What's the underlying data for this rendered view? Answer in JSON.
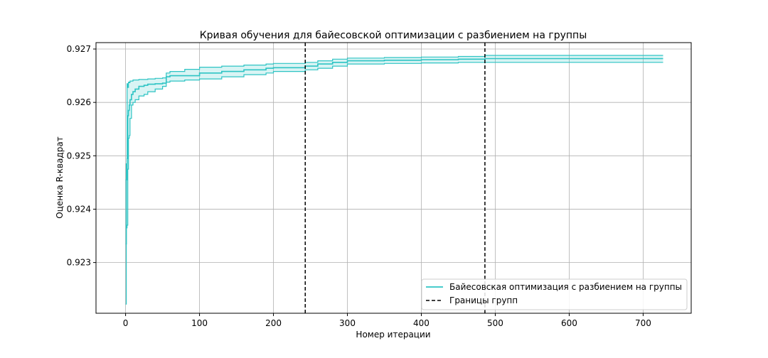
{
  "chart_data": {
    "type": "line",
    "title": "Кривая обучения для байесовской оптимизации с разбиением на группы",
    "xlabel": "Номер итерации",
    "ylabel": "Оценка R-квадрат",
    "xlim": [
      -40,
      765
    ],
    "ylim": [
      0.92205,
      0.92712
    ],
    "xticks": [
      0,
      100,
      200,
      300,
      400,
      500,
      600,
      700
    ],
    "yticks": [
      0.923,
      0.924,
      0.925,
      0.926,
      0.927
    ],
    "xtick_labels": [
      "0",
      "100",
      "200",
      "300",
      "400",
      "500",
      "600",
      "700"
    ],
    "ytick_labels": [
      "0.923",
      "0.924",
      "0.925",
      "0.926",
      "0.927"
    ],
    "grid": true,
    "legend_position": "lower-right",
    "series": [
      {
        "name": "Байесовская оптимизация с разбиением на группы",
        "color": "#2ec4c4",
        "x": [
          0,
          1,
          2,
          3,
          4,
          5,
          6,
          8,
          10,
          13,
          18,
          25,
          30,
          40,
          50,
          55,
          60,
          80,
          100,
          130,
          160,
          190,
          200,
          230,
          243,
          260,
          280,
          300,
          350,
          400,
          450,
          486,
          600,
          727
        ],
        "y": [
          0.92335,
          0.92455,
          0.92495,
          0.92575,
          0.92585,
          0.92595,
          0.92605,
          0.92615,
          0.9262,
          0.92625,
          0.9263,
          0.92632,
          0.92634,
          0.92635,
          0.92636,
          0.92648,
          0.9265,
          0.9265,
          0.92655,
          0.92658,
          0.92661,
          0.92664,
          0.92665,
          0.92665,
          0.92668,
          0.92672,
          0.92675,
          0.92678,
          0.92679,
          0.9268,
          0.92681,
          0.92682,
          0.92682,
          0.92682
        ],
        "lower": [
          0.92222,
          0.92365,
          0.9237,
          0.92475,
          0.92533,
          0.92538,
          0.9257,
          0.92595,
          0.926,
          0.92605,
          0.92612,
          0.92615,
          0.9262,
          0.92625,
          0.9263,
          0.92638,
          0.9264,
          0.92642,
          0.92644,
          0.92648,
          0.92652,
          0.92655,
          0.92658,
          0.92658,
          0.92661,
          0.92664,
          0.92668,
          0.92672,
          0.92673,
          0.92674,
          0.92675,
          0.92675,
          0.92675,
          0.92675
        ],
        "upper": [
          0.92455,
          0.92485,
          0.92635,
          0.92628,
          0.92638,
          0.92637,
          0.9264,
          0.9264,
          0.92642,
          0.92642,
          0.92643,
          0.92643,
          0.92644,
          0.92645,
          0.92646,
          0.92655,
          0.92658,
          0.92662,
          0.92666,
          0.92668,
          0.9267,
          0.92672,
          0.92673,
          0.92673,
          0.92675,
          0.92678,
          0.92681,
          0.92683,
          0.92684,
          0.92685,
          0.92686,
          0.92688,
          0.92688,
          0.92688
        ]
      },
      {
        "name": "Границы групп",
        "color": "#000000",
        "style": "dashed",
        "vlines": [
          243,
          486
        ]
      }
    ]
  }
}
